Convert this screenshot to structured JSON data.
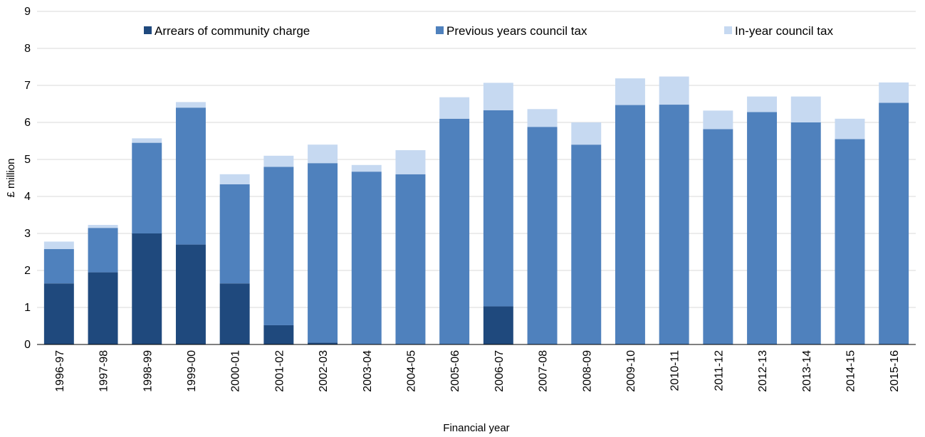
{
  "chart_data": {
    "type": "bar",
    "stacked": true,
    "title": "",
    "xlabel": "Financial year",
    "ylabel": "£ million",
    "ylim": [
      0,
      9
    ],
    "yticks": [
      "0",
      "1",
      "2",
      "3",
      "4",
      "5",
      "6",
      "7",
      "8",
      "9"
    ],
    "grid": true,
    "legend_position": "top",
    "categories": [
      "1996-97",
      "1997-98",
      "1998-99",
      "1999-00",
      "2000-01",
      "2001-02",
      "2002-03",
      "2003-04",
      "2004-05",
      "2005-06",
      "2006-07",
      "2007-08",
      "2008-09",
      "2009-10",
      "2010-11",
      "2011-12",
      "2012-13",
      "2013-14",
      "2014-15",
      "2015-16"
    ],
    "series": [
      {
        "name": "Arrears of community charge",
        "color": "#1f497d",
        "values": [
          1.65,
          1.95,
          3.0,
          2.7,
          1.65,
          0.52,
          0.05,
          0,
          0,
          0,
          1.03,
          0,
          0,
          0,
          0,
          0,
          0,
          0,
          0,
          0
        ]
      },
      {
        "name": "Previous years council tax",
        "color": "#4f81bd",
        "values": [
          0.93,
          1.2,
          2.45,
          3.7,
          2.68,
          4.28,
          4.85,
          4.67,
          4.6,
          6.1,
          5.3,
          5.88,
          5.4,
          6.47,
          6.48,
          5.82,
          6.28,
          6.0,
          5.55,
          6.53
        ]
      },
      {
        "name": "In-year council tax",
        "color": "#c6d9f1",
        "values": [
          0.2,
          0.08,
          0.12,
          0.15,
          0.27,
          0.3,
          0.5,
          0.18,
          0.65,
          0.58,
          0.74,
          0.48,
          0.6,
          0.72,
          0.76,
          0.5,
          0.42,
          0.7,
          0.55,
          0.55
        ]
      }
    ]
  }
}
